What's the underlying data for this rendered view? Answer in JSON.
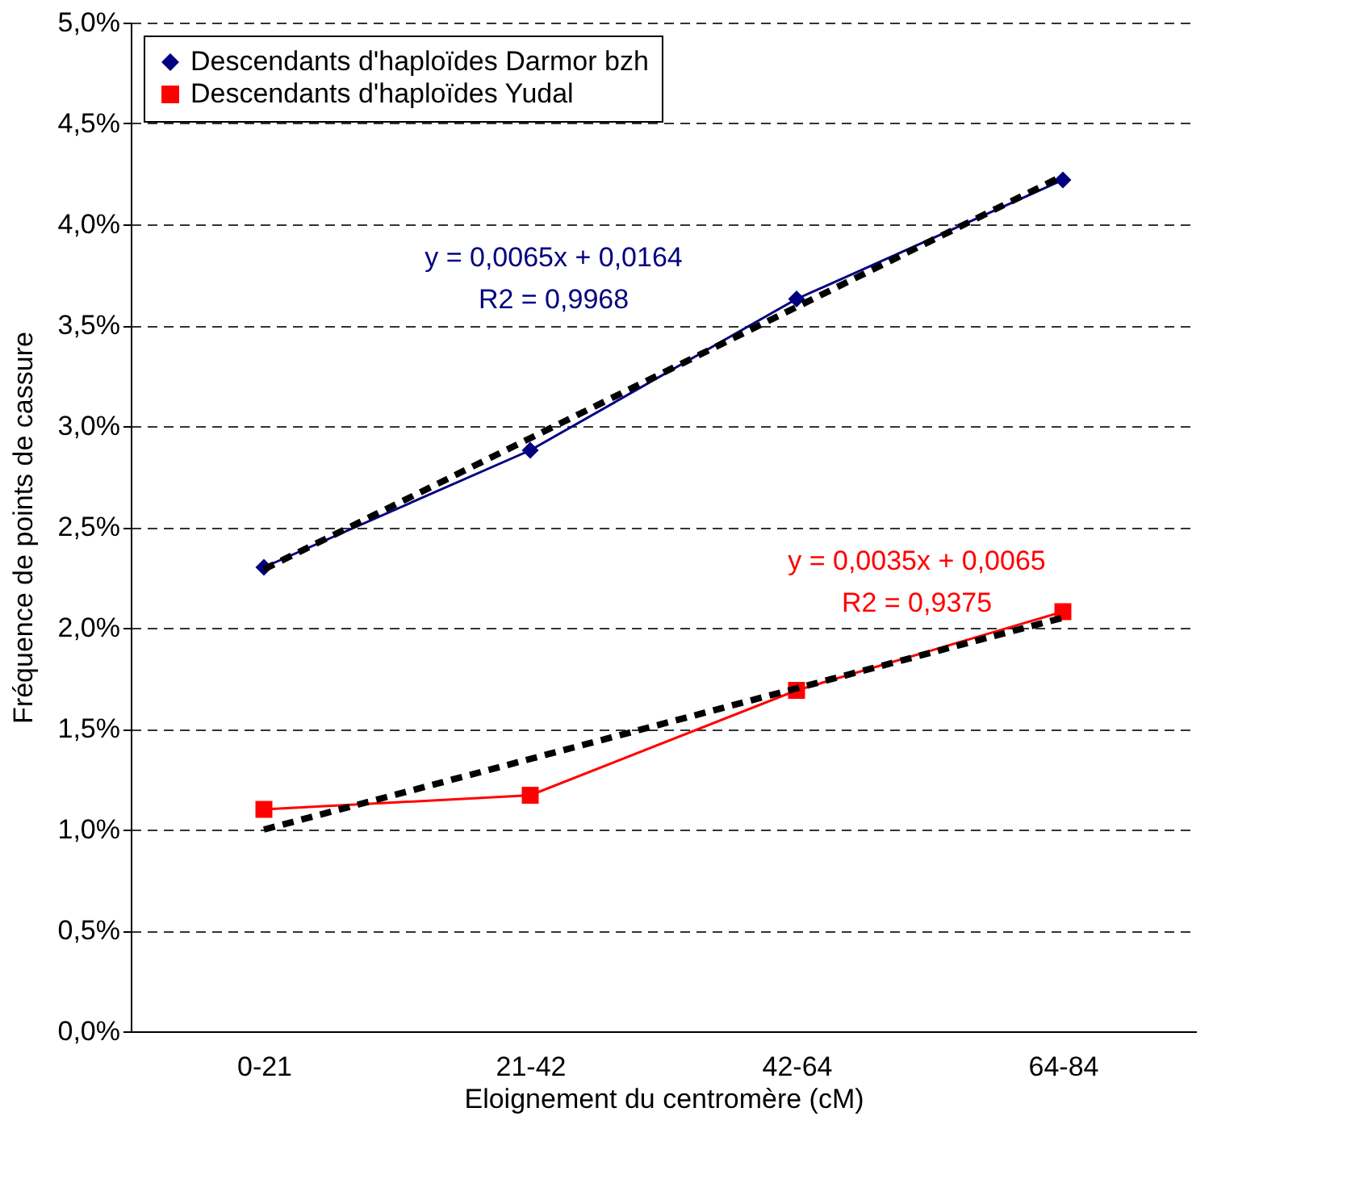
{
  "chart_data": {
    "type": "line",
    "xlabel": "Eloignement du centromère (cM)",
    "ylabel": "Fréquence de points de cassure",
    "categories": [
      "0-21",
      "21-42",
      "42-64",
      "64-84"
    ],
    "series": [
      {
        "name": "Descendants d'haploïdes Darmor bzh",
        "color": "#000080",
        "marker": "diamond",
        "line_style": "solid",
        "values": [
          2.3,
          2.88,
          3.63,
          4.22
        ]
      },
      {
        "name": "Descendants d'haploïdes Yudal",
        "color": "#ff0000",
        "marker": "square",
        "line_style": "solid",
        "values": [
          1.1,
          1.17,
          1.69,
          2.08
        ]
      },
      {
        "type": "line",
        "color": "#000000",
        "marker": "none",
        "line_style": "dashed",
        "values": [
          2.29,
          2.94,
          3.59,
          4.24
        ]
      },
      {
        "type": "line",
        "color": "#000000",
        "marker": "none",
        "line_style": "dashed",
        "values": [
          1.0,
          1.35,
          1.7,
          2.05
        ]
      }
    ],
    "annotations": [
      "y = 0,0065x + 0,0164",
      "R2 = 0,9968",
      "y = 0,0035x + 0,0065",
      "R2 = 0,9375"
    ],
    "ylim": [
      0,
      5
    ],
    "yticks": [
      {
        "value": 0,
        "label": "0,0%"
      },
      {
        "value": 0.5,
        "label": "0,5%"
      },
      {
        "value": 1,
        "label": "1,0%"
      },
      {
        "value": 1.5,
        "label": "1,5%"
      },
      {
        "value": 2,
        "label": "2,0%"
      },
      {
        "value": 2.5,
        "label": "2,5%"
      },
      {
        "value": 3,
        "label": "3,0%"
      },
      {
        "value": 3.5,
        "label": "3,5%"
      },
      {
        "value": 4,
        "label": "4,0%"
      },
      {
        "value": 4.5,
        "label": "4,5%"
      },
      {
        "value": 5,
        "label": "5,0%"
      }
    ],
    "grid": "y",
    "legend": "top left"
  }
}
